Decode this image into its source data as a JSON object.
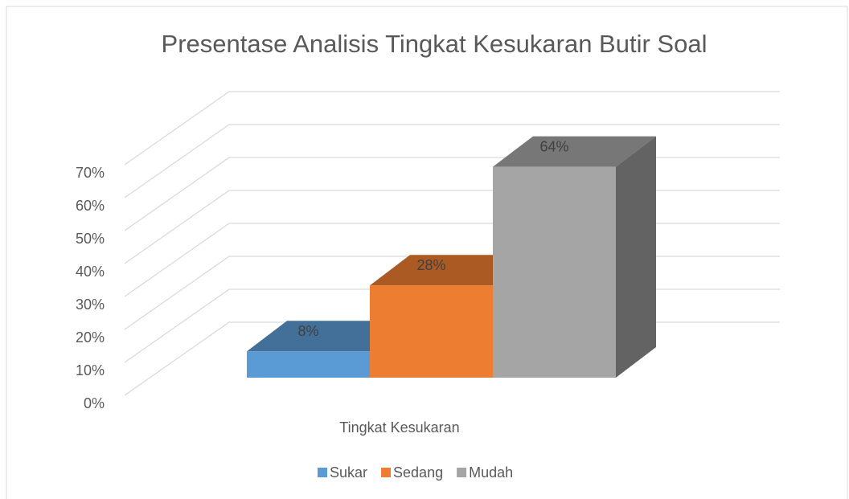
{
  "chart_data": {
    "type": "bar3d",
    "title": "Presentase Analisis Tingkat Kesukaran Butir Soal",
    "categories": [
      "Tingkat Kesukaran"
    ],
    "series": [
      {
        "name": "Sukar",
        "color": "#5b9bd5",
        "values": [
          8
        ],
        "value_labels": [
          "8%"
        ]
      },
      {
        "name": "Sedang",
        "color": "#ed7d31",
        "values": [
          28
        ],
        "value_labels": [
          "28%"
        ]
      },
      {
        "name": "Mudah",
        "color": "#a5a5a5",
        "values": [
          64
        ],
        "value_labels": [
          "64%"
        ]
      }
    ],
    "ylim": [
      0,
      70
    ],
    "yticks": [
      {
        "value": 0,
        "label": "0%"
      },
      {
        "value": 10,
        "label": "10%"
      },
      {
        "value": 20,
        "label": "20%"
      },
      {
        "value": 30,
        "label": "30%"
      },
      {
        "value": 40,
        "label": "40%"
      },
      {
        "value": 50,
        "label": "50%"
      },
      {
        "value": 60,
        "label": "60%"
      },
      {
        "value": 70,
        "label": "70%"
      }
    ],
    "grid": true,
    "legend": "bottom"
  }
}
